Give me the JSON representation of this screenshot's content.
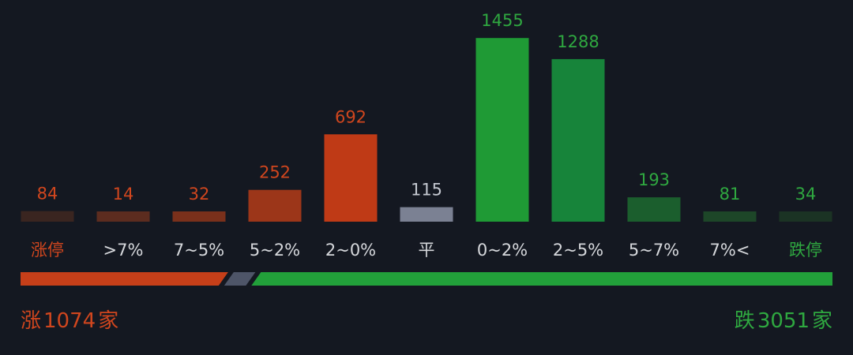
{
  "chart_data": {
    "type": "bar",
    "categories": [
      "涨停",
      ">7%",
      "7~5%",
      "5~2%",
      "2~0%",
      "平",
      "0~2%",
      "2~5%",
      "5~7%",
      "7%<",
      "跌停"
    ],
    "values": [
      84,
      14,
      32,
      252,
      692,
      115,
      1455,
      1288,
      193,
      81,
      34
    ],
    "colors": [
      "#3a2520",
      "#5c2c1f",
      "#7a301b",
      "#9c3619",
      "#bf3a16",
      "#7b8193",
      "#1f9a35",
      "#17843a",
      "#1b5e2d",
      "#1d4628",
      "#1b3324"
    ],
    "value_label_colors": [
      "#d0461e",
      "#d0461e",
      "#d0461e",
      "#d0461e",
      "#d0461e",
      "#c4c8d0",
      "#2fa840",
      "#2fa840",
      "#2fa840",
      "#2fa840",
      "#2fa840"
    ],
    "category_label_colors": [
      "#d0461e",
      "#d6d8dc",
      "#d6d8dc",
      "#d6d8dc",
      "#d6d8dc",
      "#d6d8dc",
      "#d6d8dc",
      "#d6d8dc",
      "#d6d8dc",
      "#d6d8dc",
      "#2fa840"
    ]
  },
  "summary": {
    "up": {
      "prefix": "涨",
      "value": 1074,
      "suffix": "家",
      "color": "#d0461e"
    },
    "flat_color": "#4e5568",
    "down": {
      "prefix": "跌",
      "value": 3051,
      "suffix": "家",
      "color": "#2fa840"
    }
  }
}
